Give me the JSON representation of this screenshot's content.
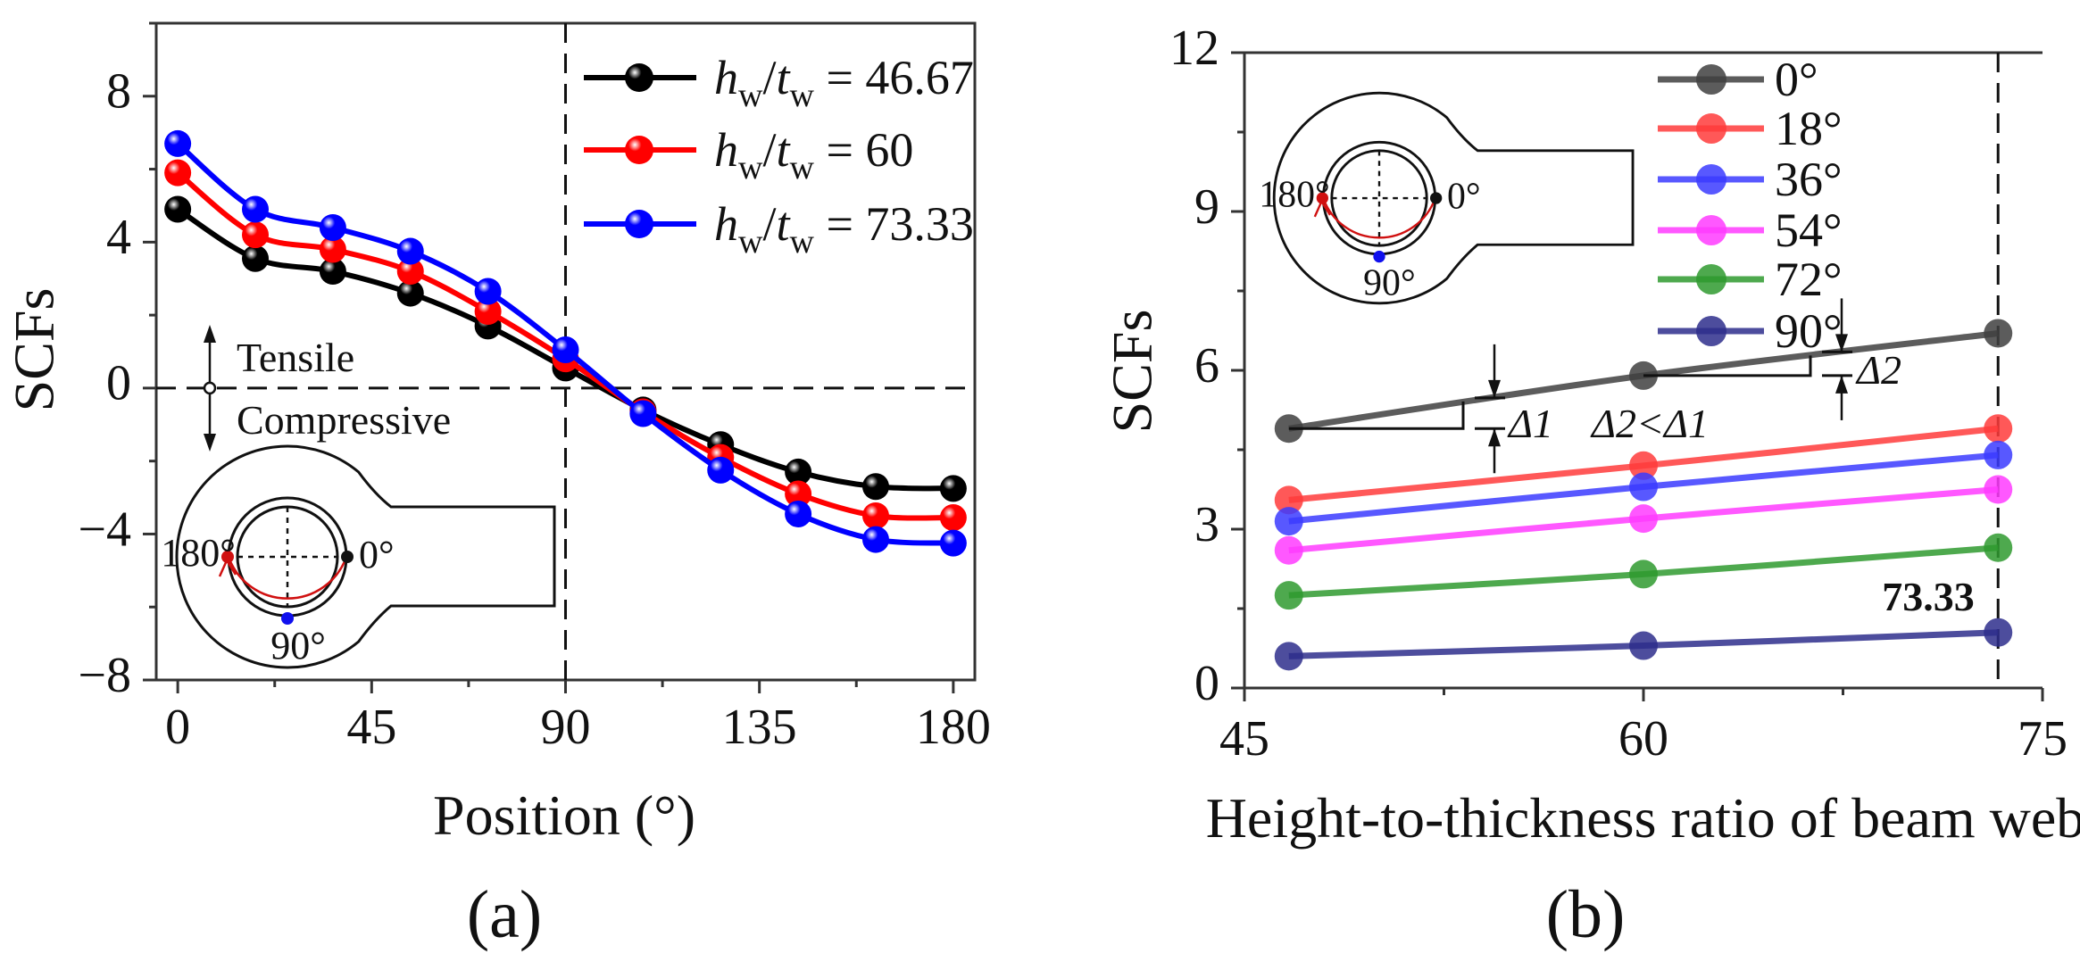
{
  "chart_data": [
    {
      "type": "line",
      "panel_label": "(a)",
      "xlabel": "Position (°)",
      "ylabel": "SCFs",
      "xlim": [
        -5,
        185
      ],
      "ylim": [
        -8,
        10
      ],
      "xticks": [
        0,
        45,
        90,
        135,
        180
      ],
      "yticks": [
        -8,
        -4,
        0,
        4,
        8
      ],
      "yticklabels": [
        "−8",
        "−4",
        "0",
        "4",
        "8"
      ],
      "grid": false,
      "legend_position": "top-right",
      "legend_symbol": {
        "num": "h",
        "num_sub": "w",
        "den": "t",
        "den_sub": "w"
      },
      "reference_lines": {
        "x": 90,
        "y": 0
      },
      "x": [
        0,
        18,
        36,
        54,
        72,
        90,
        108,
        126,
        144,
        162,
        180
      ],
      "series": [
        {
          "name": "= 46.67",
          "color": "#000000",
          "values": [
            4.9,
            3.55,
            3.2,
            2.6,
            1.7,
            0.55,
            -0.6,
            -1.55,
            -2.3,
            -2.7,
            -2.75
          ]
        },
        {
          "name": "= 60",
          "color": "#ff0000",
          "values": [
            5.9,
            4.2,
            3.8,
            3.2,
            2.1,
            0.8,
            -0.65,
            -1.9,
            -2.9,
            -3.5,
            -3.55
          ]
        },
        {
          "name": "= 73.33",
          "color": "#0000ff",
          "values": [
            6.7,
            4.9,
            4.4,
            3.75,
            2.65,
            1.05,
            -0.7,
            -2.25,
            -3.45,
            -4.15,
            -4.25
          ]
        }
      ],
      "annotations": {
        "tensile": "Tensile",
        "compressive": "Compressive"
      },
      "inset_labels": {
        "a180": "180°",
        "a0": "0°",
        "a90": "90°"
      }
    },
    {
      "type": "line",
      "panel_label": "(b)",
      "xlabel": "Height-to-thickness ratio of beam web",
      "ylabel": "SCFs",
      "xlim": [
        45,
        75
      ],
      "ylim": [
        0,
        12
      ],
      "xticks": [
        45,
        60,
        75
      ],
      "yticks": [
        0,
        3,
        6,
        9,
        12
      ],
      "grid": false,
      "legend_position": "top-right",
      "x": [
        46.67,
        60,
        73.33
      ],
      "series": [
        {
          "name": "0°",
          "color": "#404040",
          "values": [
            4.9,
            5.9,
            6.7
          ]
        },
        {
          "name": "18°",
          "color": "#ff3b3b",
          "values": [
            3.55,
            4.2,
            4.9
          ]
        },
        {
          "name": "36°",
          "color": "#3b3bff",
          "values": [
            3.15,
            3.8,
            4.4
          ]
        },
        {
          "name": "54°",
          "color": "#ff3bff",
          "values": [
            2.6,
            3.2,
            3.75
          ]
        },
        {
          "name": "72°",
          "color": "#2f9a2f",
          "values": [
            1.75,
            2.15,
            2.65
          ]
        },
        {
          "name": "90°",
          "color": "#2e2e8c",
          "values": [
            0.6,
            0.8,
            1.05
          ]
        }
      ],
      "reference_line_x": 73.33,
      "annotations": {
        "ref_label": "73.33",
        "delta1": "Δ1",
        "delta_compare": "Δ2<Δ1",
        "delta2": "Δ2"
      },
      "inset_labels": {
        "a180": "180°",
        "a0": "0°",
        "a90": "90°"
      }
    }
  ]
}
